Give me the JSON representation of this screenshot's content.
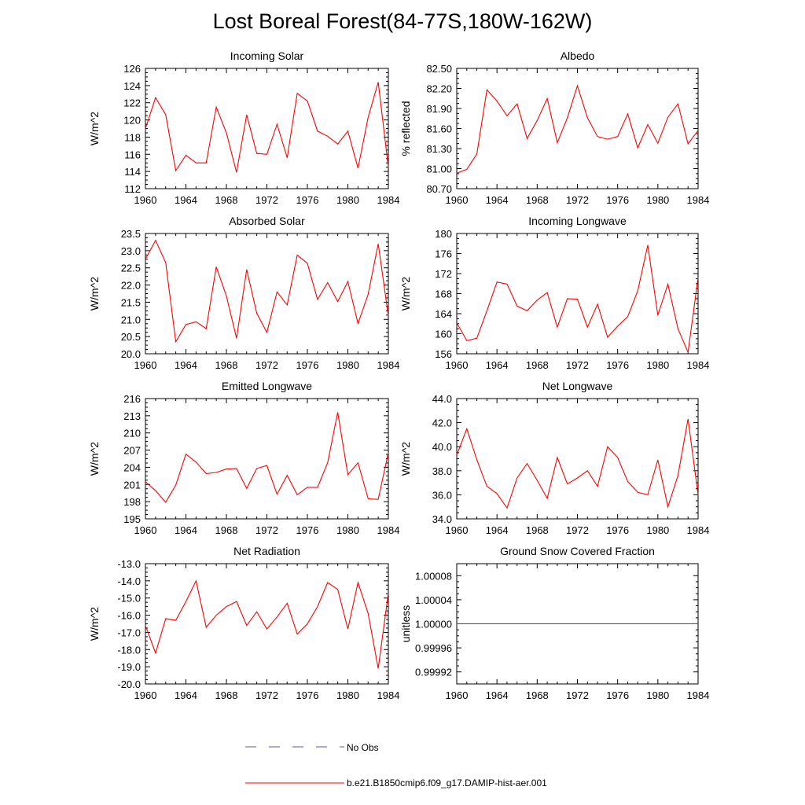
{
  "title": "Lost Boreal Forest(84-77S,180W-162W)",
  "colors": {
    "model": "#ff0000",
    "obs": "#5555aa",
    "axis": "#000000"
  },
  "legend": [
    {
      "label": "No Obs",
      "style": "dashed",
      "color": "#5555aa"
    },
    {
      "label": "b.e21.B1850cmip6.f09_g17.DAMIP-hist-aer.001",
      "style": "solid",
      "color": "#ff0000"
    }
  ],
  "chart_data": [
    {
      "type": "line",
      "title": "Incoming Solar",
      "ylabel": "W/m^2",
      "xlim": [
        1960,
        1984
      ],
      "xticks": [
        1960,
        1964,
        1968,
        1972,
        1976,
        1980,
        1984
      ],
      "ylim": [
        112,
        126
      ],
      "yticks": [
        "112",
        "114",
        "116",
        "118",
        "120",
        "122",
        "124",
        "126"
      ],
      "x": [
        1960,
        1961,
        1962,
        1963,
        1964,
        1965,
        1966,
        1967,
        1968,
        1969,
        1970,
        1971,
        1972,
        1973,
        1974,
        1975,
        1976,
        1977,
        1978,
        1979,
        1980,
        1981,
        1982,
        1983,
        1984
      ],
      "series": [
        {
          "values": [
            119.0,
            122.6,
            120.6,
            114.1,
            115.9,
            115.0,
            115.0,
            121.5,
            118.5,
            113.9,
            120.6,
            116.1,
            116.0,
            119.5,
            115.6,
            123.1,
            122.2,
            118.7,
            118.1,
            117.2,
            118.7,
            114.4,
            120.3,
            124.4,
            114.5
          ]
        }
      ]
    },
    {
      "type": "line",
      "title": "Albedo",
      "ylabel": "% reflected",
      "xlim": [
        1960,
        1984
      ],
      "xticks": [
        1960,
        1964,
        1968,
        1972,
        1976,
        1980,
        1984
      ],
      "ylim": [
        80.7,
        82.5
      ],
      "yticks": [
        "80.70",
        "81.00",
        "81.30",
        "81.60",
        "81.90",
        "82.20",
        "82.50"
      ],
      "x": [
        1960,
        1961,
        1962,
        1963,
        1964,
        1965,
        1966,
        1967,
        1968,
        1969,
        1970,
        1971,
        1972,
        1973,
        1974,
        1975,
        1976,
        1977,
        1978,
        1979,
        1980,
        1981,
        1982,
        1983,
        1984
      ],
      "series": [
        {
          "values": [
            80.93,
            80.99,
            81.22,
            82.18,
            82.01,
            81.79,
            81.97,
            81.45,
            81.72,
            82.05,
            81.39,
            81.76,
            82.24,
            81.76,
            81.48,
            81.44,
            81.48,
            81.82,
            81.31,
            81.66,
            81.38,
            81.77,
            81.97,
            81.37,
            81.57
          ]
        }
      ]
    },
    {
      "type": "line",
      "title": "Absorbed Solar",
      "ylabel": "W/m^2",
      "xlim": [
        1960,
        1984
      ],
      "xticks": [
        1960,
        1964,
        1968,
        1972,
        1976,
        1980,
        1984
      ],
      "ylim": [
        20.0,
        23.5
      ],
      "yticks": [
        "20.0",
        "20.5",
        "21.0",
        "21.5",
        "22.0",
        "22.5",
        "23.0",
        "23.5"
      ],
      "x": [
        1960,
        1961,
        1962,
        1963,
        1964,
        1965,
        1966,
        1967,
        1968,
        1969,
        1970,
        1971,
        1972,
        1973,
        1974,
        1975,
        1976,
        1977,
        1978,
        1979,
        1980,
        1981,
        1982,
        1983,
        1984
      ],
      "series": [
        {
          "values": [
            22.75,
            23.3,
            22.65,
            20.35,
            20.85,
            20.93,
            20.73,
            22.53,
            21.68,
            20.45,
            22.45,
            21.18,
            20.62,
            21.8,
            21.42,
            22.87,
            22.63,
            21.58,
            22.07,
            21.52,
            22.1,
            20.88,
            21.73,
            23.2,
            21.1
          ]
        }
      ]
    },
    {
      "type": "line",
      "title": "Incoming Longwave",
      "ylabel": "W/m^2",
      "xlim": [
        1960,
        1984
      ],
      "xticks": [
        1960,
        1964,
        1968,
        1972,
        1976,
        1980,
        1984
      ],
      "ylim": [
        156,
        180
      ],
      "yticks": [
        "156",
        "160",
        "164",
        "168",
        "172",
        "176",
        "180"
      ],
      "x": [
        1960,
        1961,
        1962,
        1963,
        1964,
        1965,
        1966,
        1967,
        1968,
        1969,
        1970,
        1971,
        1972,
        1973,
        1974,
        1975,
        1976,
        1977,
        1978,
        1979,
        1980,
        1981,
        1982,
        1983,
        1984
      ],
      "series": [
        {
          "values": [
            162.2,
            158.6,
            159.1,
            164.6,
            170.3,
            169.9,
            165.5,
            164.6,
            166.7,
            168.2,
            161.3,
            167.0,
            166.9,
            161.3,
            165.9,
            159.3,
            161.5,
            163.4,
            168.6,
            177.7,
            163.7,
            169.9,
            161.0,
            156.3,
            171.2
          ]
        }
      ]
    },
    {
      "type": "line",
      "title": "Emitted Longwave",
      "ylabel": "W/m^2",
      "xlim": [
        1960,
        1984
      ],
      "xticks": [
        1960,
        1964,
        1968,
        1972,
        1976,
        1980,
        1984
      ],
      "ylim": [
        195,
        216
      ],
      "yticks": [
        "195",
        "198",
        "201",
        "204",
        "207",
        "210",
        "213",
        "216"
      ],
      "x": [
        1960,
        1961,
        1962,
        1963,
        1964,
        1965,
        1966,
        1967,
        1968,
        1969,
        1970,
        1971,
        1972,
        1973,
        1974,
        1975,
        1976,
        1977,
        1978,
        1979,
        1980,
        1981,
        1982,
        1983,
        1984
      ],
      "series": [
        {
          "values": [
            201.5,
            199.9,
            197.9,
            200.9,
            206.3,
            204.9,
            202.9,
            203.1,
            203.7,
            203.8,
            200.3,
            203.8,
            204.3,
            199.3,
            202.6,
            199.2,
            200.5,
            200.5,
            204.8,
            213.6,
            202.7,
            204.8,
            198.5,
            198.4,
            206.6
          ]
        }
      ]
    },
    {
      "type": "line",
      "title": "Net Longwave",
      "ylabel": "W/m^2",
      "xlim": [
        1960,
        1984
      ],
      "xticks": [
        1960,
        1964,
        1968,
        1972,
        1976,
        1980,
        1984
      ],
      "ylim": [
        34.0,
        44.0
      ],
      "yticks": [
        "34.0",
        "36.0",
        "38.0",
        "40.0",
        "42.0",
        "44.0"
      ],
      "x": [
        1960,
        1961,
        1962,
        1963,
        1964,
        1965,
        1966,
        1967,
        1968,
        1969,
        1970,
        1971,
        1972,
        1973,
        1974,
        1975,
        1976,
        1977,
        1978,
        1979,
        1980,
        1981,
        1982,
        1983,
        1984
      ],
      "series": [
        {
          "values": [
            39.3,
            41.5,
            38.9,
            36.7,
            36.1,
            34.9,
            37.4,
            38.6,
            37.2,
            35.7,
            39.1,
            36.9,
            37.4,
            38.0,
            36.7,
            40.0,
            39.1,
            37.1,
            36.2,
            36.0,
            38.9,
            35.0,
            37.6,
            42.3,
            36.0
          ]
        }
      ]
    },
    {
      "type": "line",
      "title": "Net Radiation",
      "ylabel": "W/m^2",
      "xlim": [
        1960,
        1984
      ],
      "xticks": [
        1960,
        1964,
        1968,
        1972,
        1976,
        1980,
        1984
      ],
      "ylim": [
        -20.0,
        -13.0
      ],
      "yticks": [
        "-20.0",
        "-19.0",
        "-18.0",
        "-17.0",
        "-16.0",
        "-15.0",
        "-14.0",
        "-13.0"
      ],
      "x": [
        1960,
        1961,
        1962,
        1963,
        1964,
        1965,
        1966,
        1967,
        1968,
        1969,
        1970,
        1971,
        1972,
        1973,
        1974,
        1975,
        1976,
        1977,
        1978,
        1979,
        1980,
        1981,
        1982,
        1983,
        1984
      ],
      "series": [
        {
          "values": [
            -16.6,
            -18.2,
            -16.2,
            -16.3,
            -15.2,
            -14.0,
            -16.7,
            -16.0,
            -15.5,
            -15.2,
            -16.6,
            -15.8,
            -16.8,
            -16.1,
            -15.3,
            -17.1,
            -16.5,
            -15.5,
            -14.1,
            -14.5,
            -16.8,
            -14.1,
            -15.9,
            -19.1,
            -14.7
          ]
        }
      ]
    },
    {
      "type": "line",
      "title": "Ground Snow Covered Fraction",
      "ylabel": "unitless",
      "xlim": [
        1960,
        1984
      ],
      "xticks": [
        1960,
        1964,
        1968,
        1972,
        1976,
        1980,
        1984
      ],
      "ylim": [
        0.9999,
        1.0001
      ],
      "yticks": [
        "0.99992",
        "0.99996",
        "1.00000",
        "1.00004",
        "1.00008"
      ],
      "ytickvalues": [
        0.99992,
        0.99996,
        1.0,
        1.00004,
        1.00008
      ],
      "x": [
        1960,
        1984
      ],
      "series": [
        {
          "values": [
            1.0,
            1.0
          ]
        }
      ]
    }
  ]
}
